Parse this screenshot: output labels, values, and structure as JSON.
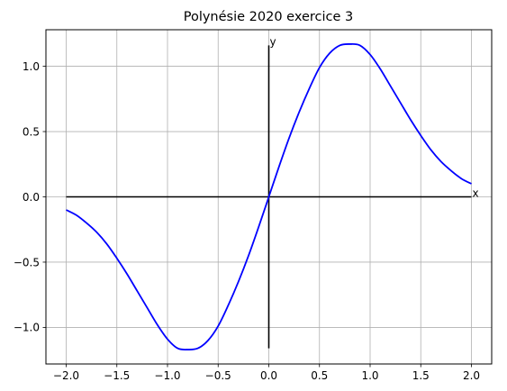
{
  "chart_data": {
    "type": "line",
    "title": "Polynésie 2020 exercice 3",
    "xlabel": "",
    "ylabel": "",
    "xlim": [
      -2.2,
      2.2
    ],
    "ylim": [
      -1.28,
      1.28
    ],
    "grid": true,
    "x_ticks": [
      -2.0,
      -1.5,
      -1.0,
      -0.5,
      0.0,
      0.5,
      1.0,
      1.5,
      2.0
    ],
    "x_tick_labels": [
      "−2.0",
      "−1.5",
      "−1.0",
      "−0.5",
      "0.0",
      "0.5",
      "1.0",
      "1.5",
      "2.0"
    ],
    "y_ticks": [
      -1.0,
      -0.5,
      0.0,
      0.5,
      1.0
    ],
    "y_tick_labels": [
      "−1.0",
      "−0.5",
      "0.0",
      "0.5",
      "1.0"
    ],
    "annotations": [
      {
        "text": "x",
        "x": 2.0,
        "y": 0.0
      },
      {
        "text": "y",
        "x": 0.0,
        "y": 1.16
      }
    ],
    "axis_lines": [
      {
        "name": "x-axis-line",
        "x": [
          -2.0,
          2.0
        ],
        "y": [
          0.0,
          0.0
        ],
        "color": "#000000"
      },
      {
        "name": "y-axis-line",
        "x": [
          0.0,
          0.0
        ],
        "y": [
          -1.16,
          1.16
        ],
        "color": "#000000"
      }
    ],
    "series": [
      {
        "color": "#0000ff",
        "x": [
          -2.0,
          -1.9,
          -1.8,
          -1.7,
          -1.6,
          -1.5,
          -1.4,
          -1.3,
          -1.2,
          -1.1,
          -1.0,
          -0.9,
          -0.8,
          -0.7,
          -0.6,
          -0.5,
          -0.4,
          -0.3,
          -0.2,
          -0.1,
          0.0,
          0.1,
          0.2,
          0.3,
          0.4,
          0.5,
          0.6,
          0.7,
          0.8,
          0.9,
          1.0,
          1.1,
          1.2,
          1.3,
          1.4,
          1.5,
          1.6,
          1.7,
          1.8,
          1.9,
          2.0
        ],
        "y": [
          -0.1,
          -0.14,
          -0.2,
          -0.27,
          -0.36,
          -0.47,
          -0.59,
          -0.72,
          -0.85,
          -0.98,
          -1.09,
          -1.16,
          -1.17,
          -1.16,
          -1.1,
          -0.99,
          -0.83,
          -0.65,
          -0.45,
          -0.23,
          0.0,
          0.23,
          0.45,
          0.65,
          0.83,
          0.99,
          1.1,
          1.16,
          1.17,
          1.16,
          1.09,
          0.98,
          0.85,
          0.72,
          0.59,
          0.47,
          0.36,
          0.27,
          0.2,
          0.14,
          0.1
        ]
      }
    ]
  }
}
